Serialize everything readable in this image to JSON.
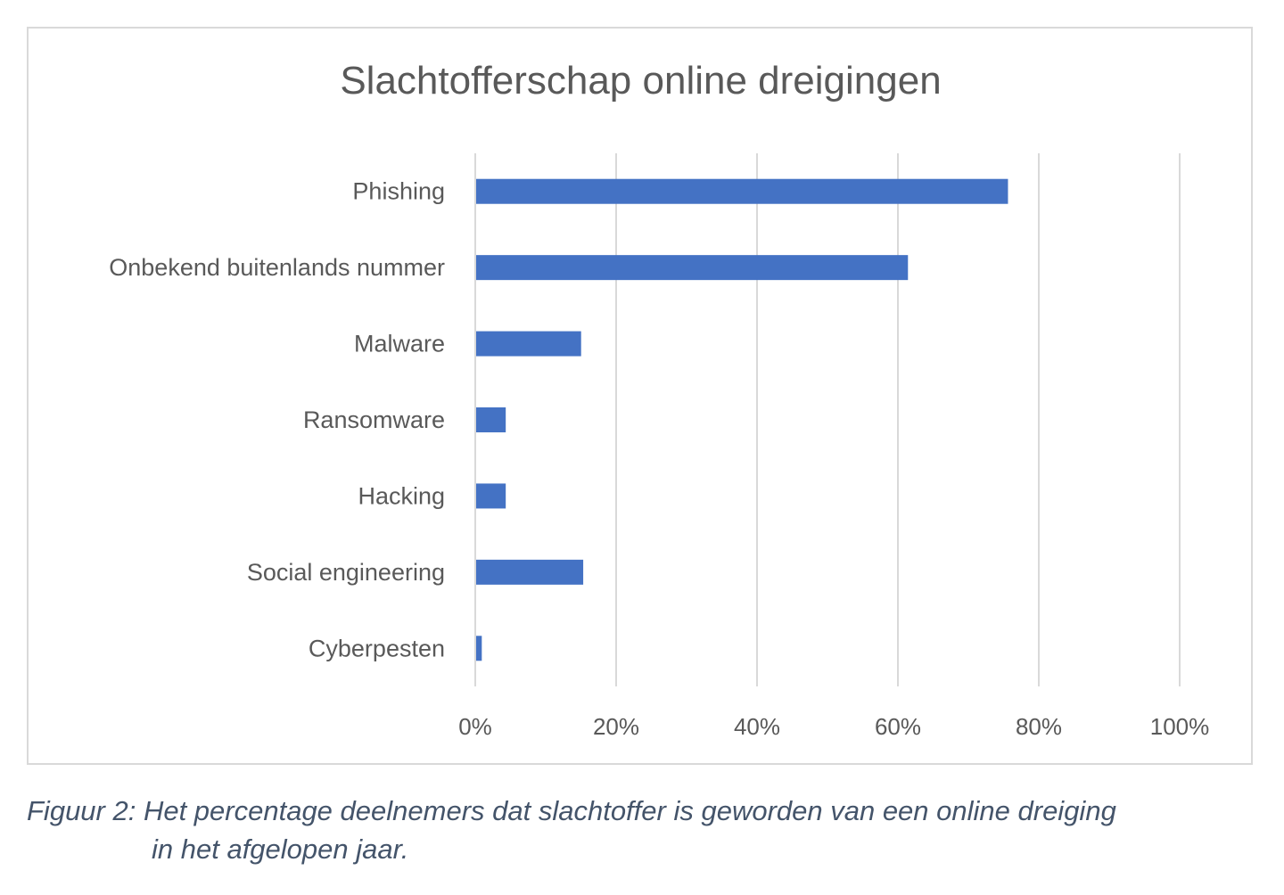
{
  "chart_data": {
    "type": "bar",
    "orientation": "horizontal",
    "title": "Slachtofferschap online dreigingen",
    "categories": [
      "Phishing",
      "Onbekend buitenlands nummer",
      "Malware",
      "Ransomware",
      "Hacking",
      "Social engineering",
      "Cyberpesten"
    ],
    "values": [
      75.5,
      61.3,
      14.9,
      4.2,
      4.2,
      15.2,
      0.8
    ],
    "xlim": [
      0,
      100
    ],
    "xticks": [
      "0%",
      "20%",
      "40%",
      "60%",
      "80%",
      "100%"
    ],
    "xlabel": "",
    "ylabel": "",
    "grid": "vertical",
    "bar_color": "#4472c4"
  },
  "caption": {
    "line1": "Figuur 2: Het percentage deelnemers dat slachtoffer is geworden van een online dreiging",
    "line2": "in het afgelopen jaar."
  }
}
